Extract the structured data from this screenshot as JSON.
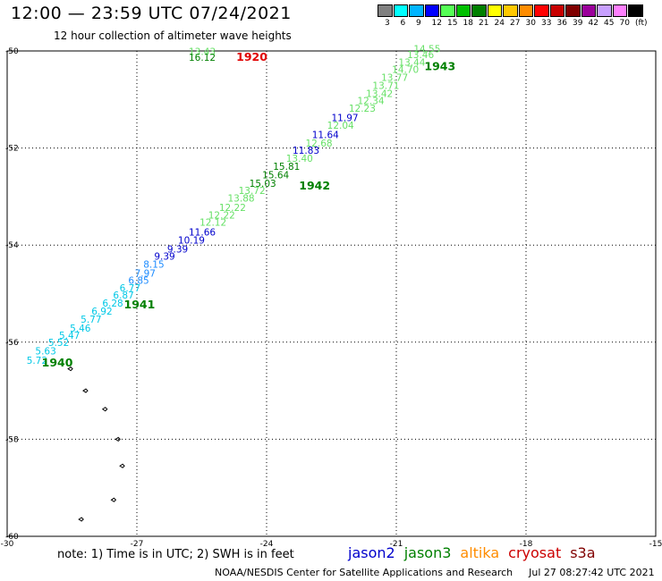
{
  "header": {
    "title": "12:00 — 23:59 UTC 07/24/2021",
    "subtitle": "12 hour collection of altimeter wave heights"
  },
  "legend": {
    "colors": [
      "#808080",
      "#00ffff",
      "#00b4ff",
      "#0000ff",
      "#55ff55",
      "#00c000",
      "#008000",
      "#ffff00",
      "#ffc800",
      "#ff8c00",
      "#ff0000",
      "#c80000",
      "#800000",
      "#9b009b",
      "#c8a0ff",
      "#ff80ff",
      "#000000"
    ],
    "ticks": [
      "3",
      "6",
      "9",
      "12",
      "15",
      "18",
      "21",
      "24",
      "27",
      "30",
      "33",
      "36",
      "39",
      "42",
      "45",
      "70",
      "(ft)"
    ]
  },
  "footer": {
    "note": "note: 1) Time is in UTC; 2) SWH is in feet",
    "satellites": [
      {
        "name": "jason2",
        "color": "#0000cc"
      },
      {
        "name": "jason3",
        "color": "#008000"
      },
      {
        "name": "altika",
        "color": "#ff8c00"
      },
      {
        "name": "cryosat",
        "color": "#cc0000"
      },
      {
        "name": "s3a",
        "color": "#800000"
      }
    ],
    "credit": "NOAA/NESDIS Center for Satellite Applications and Research",
    "timestamp": "Jul 27 08:27:42 UTC 2021"
  },
  "chart_data": {
    "type": "scatter",
    "xlim": [
      -30,
      -15
    ],
    "ylim": [
      -60,
      -50
    ],
    "x_ticks": [
      "-30",
      "-27",
      "-24",
      "-21",
      "-18",
      "-15"
    ],
    "y_ticks": [
      "-50",
      "-52",
      "-54",
      "-56",
      "-58",
      "-60"
    ],
    "grid": true,
    "colors": {
      "cyan": "#00c8e6",
      "lightblue": "#1e8cff",
      "blue": "#0000cc",
      "lightgreen": "#66e066",
      "green": "#008000",
      "red": "#e00000"
    },
    "points": [
      {
        "lon": -29.55,
        "lat": -56.45,
        "v": "5.72",
        "c": "cyan"
      },
      {
        "lon": -29.35,
        "lat": -56.25,
        "v": "5.63",
        "c": "cyan"
      },
      {
        "lon": -29.05,
        "lat": -56.08,
        "v": "5.52",
        "c": "cyan"
      },
      {
        "lon": -28.8,
        "lat": -55.93,
        "v": "5.47",
        "c": "cyan"
      },
      {
        "lon": -28.55,
        "lat": -55.78,
        "v": "5.46",
        "c": "cyan"
      },
      {
        "lon": -28.3,
        "lat": -55.6,
        "v": "5.77",
        "c": "cyan"
      },
      {
        "lon": -28.05,
        "lat": -55.43,
        "v": "6.92",
        "c": "cyan"
      },
      {
        "lon": -27.8,
        "lat": -55.27,
        "v": "6.28",
        "c": "cyan"
      },
      {
        "lon": -27.55,
        "lat": -55.1,
        "v": "6.87",
        "c": "cyan"
      },
      {
        "lon": -27.4,
        "lat": -54.95,
        "v": "6.77",
        "c": "cyan"
      },
      {
        "lon": -27.2,
        "lat": -54.8,
        "v": "6.85",
        "c": "lightblue"
      },
      {
        "lon": -27.05,
        "lat": -54.65,
        "v": "7.97",
        "c": "lightblue"
      },
      {
        "lon": -26.85,
        "lat": -54.47,
        "v": "8.15",
        "c": "lightblue"
      },
      {
        "lon": -26.6,
        "lat": -54.3,
        "v": "9.39",
        "c": "blue"
      },
      {
        "lon": -26.3,
        "lat": -54.15,
        "v": "9.39",
        "c": "blue"
      },
      {
        "lon": -26.05,
        "lat": -53.97,
        "v": "10.19",
        "c": "blue"
      },
      {
        "lon": -25.8,
        "lat": -53.8,
        "v": "11.66",
        "c": "blue"
      },
      {
        "lon": -25.55,
        "lat": -53.6,
        "v": "12.12",
        "c": "lightgreen"
      },
      {
        "lon": -25.35,
        "lat": -53.45,
        "v": "12.22",
        "c": "lightgreen"
      },
      {
        "lon": -25.1,
        "lat": -53.3,
        "v": "12.22",
        "c": "lightgreen"
      },
      {
        "lon": -24.9,
        "lat": -53.1,
        "v": "13.88",
        "c": "lightgreen"
      },
      {
        "lon": -24.65,
        "lat": -52.95,
        "v": "13.72",
        "c": "lightgreen"
      },
      {
        "lon": -24.4,
        "lat": -52.8,
        "v": "15.03",
        "c": "green"
      },
      {
        "lon": -24.1,
        "lat": -52.62,
        "v": "15.64",
        "c": "green"
      },
      {
        "lon": -23.85,
        "lat": -52.45,
        "v": "15.81",
        "c": "green"
      },
      {
        "lon": -23.55,
        "lat": -52.28,
        "v": "13.40",
        "c": "lightgreen"
      },
      {
        "lon": -23.4,
        "lat": -52.12,
        "v": "11.83",
        "c": "blue"
      },
      {
        "lon": -23.1,
        "lat": -51.97,
        "v": "12.68",
        "c": "lightgreen"
      },
      {
        "lon": -22.95,
        "lat": -51.8,
        "v": "11.64",
        "c": "blue"
      },
      {
        "lon": -22.6,
        "lat": -51.6,
        "v": "12.04",
        "c": "lightgreen"
      },
      {
        "lon": -22.5,
        "lat": -51.45,
        "v": "11.97",
        "c": "blue"
      },
      {
        "lon": -22.1,
        "lat": -51.25,
        "v": "12.23",
        "c": "lightgreen"
      },
      {
        "lon": -21.9,
        "lat": -51.1,
        "v": "12.34",
        "c": "lightgreen"
      },
      {
        "lon": -21.7,
        "lat": -50.95,
        "v": "13.42",
        "c": "lightgreen"
      },
      {
        "lon": -21.55,
        "lat": -50.78,
        "v": "13.71",
        "c": "lightgreen"
      },
      {
        "lon": -21.35,
        "lat": -50.62,
        "v": "13.77",
        "c": "lightgreen"
      },
      {
        "lon": -21.1,
        "lat": -50.45,
        "v": "14.70",
        "c": "lightgreen"
      },
      {
        "lon": -20.95,
        "lat": -50.3,
        "v": "13.44",
        "c": "lightgreen"
      },
      {
        "lon": -20.75,
        "lat": -50.15,
        "v": "13.46",
        "c": "lightgreen"
      },
      {
        "lon": -20.6,
        "lat": -50.03,
        "v": "14.55",
        "c": "lightgreen"
      },
      {
        "lon": -25.8,
        "lat": -50.08,
        "v": "13.43",
        "c": "lightgreen"
      },
      {
        "lon": -25.8,
        "lat": -50.2,
        "v": "16.12",
        "c": "green"
      }
    ],
    "time_labels": [
      {
        "lon": -29.2,
        "lat": -56.5,
        "t": "1940",
        "c": "green"
      },
      {
        "lon": -27.3,
        "lat": -55.3,
        "t": "1941",
        "c": "green"
      },
      {
        "lon": -23.25,
        "lat": -52.85,
        "t": "1942",
        "c": "green"
      },
      {
        "lon": -20.35,
        "lat": -50.4,
        "t": "1943",
        "c": "green"
      },
      {
        "lon": -24.7,
        "lat": -50.2,
        "t": "1920",
        "c": "red"
      }
    ]
  }
}
